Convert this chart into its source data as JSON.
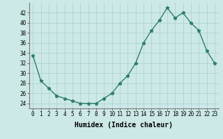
{
  "x": [
    0,
    1,
    2,
    3,
    4,
    5,
    6,
    7,
    8,
    9,
    10,
    11,
    12,
    13,
    14,
    15,
    16,
    17,
    18,
    19,
    20,
    21,
    22,
    23
  ],
  "y": [
    33.5,
    28.5,
    27.0,
    25.5,
    25.0,
    24.5,
    24.0,
    24.0,
    24.0,
    25.0,
    26.0,
    28.0,
    29.5,
    32.0,
    36.0,
    38.5,
    40.5,
    43.0,
    41.0,
    42.0,
    40.0,
    38.5,
    34.5,
    32.0
  ],
  "line_color": "#2e7d6e",
  "marker": "*",
  "markersize": 3.5,
  "linewidth": 1.0,
  "bg_color": "#cce9e7",
  "grid_color": "#aacfcf",
  "xlabel": "Humidex (Indice chaleur)",
  "ylim": [
    23,
    44
  ],
  "xlim": [
    -0.5,
    23.5
  ],
  "yticks": [
    24,
    26,
    28,
    30,
    32,
    34,
    36,
    38,
    40,
    42
  ],
  "xtick_labels": [
    "0",
    "1",
    "2",
    "3",
    "4",
    "5",
    "6",
    "7",
    "8",
    "9",
    "10",
    "11",
    "12",
    "13",
    "14",
    "15",
    "16",
    "17",
    "18",
    "19",
    "20",
    "21",
    "22",
    "23"
  ],
  "label_fontsize": 7,
  "tick_fontsize": 5.5
}
